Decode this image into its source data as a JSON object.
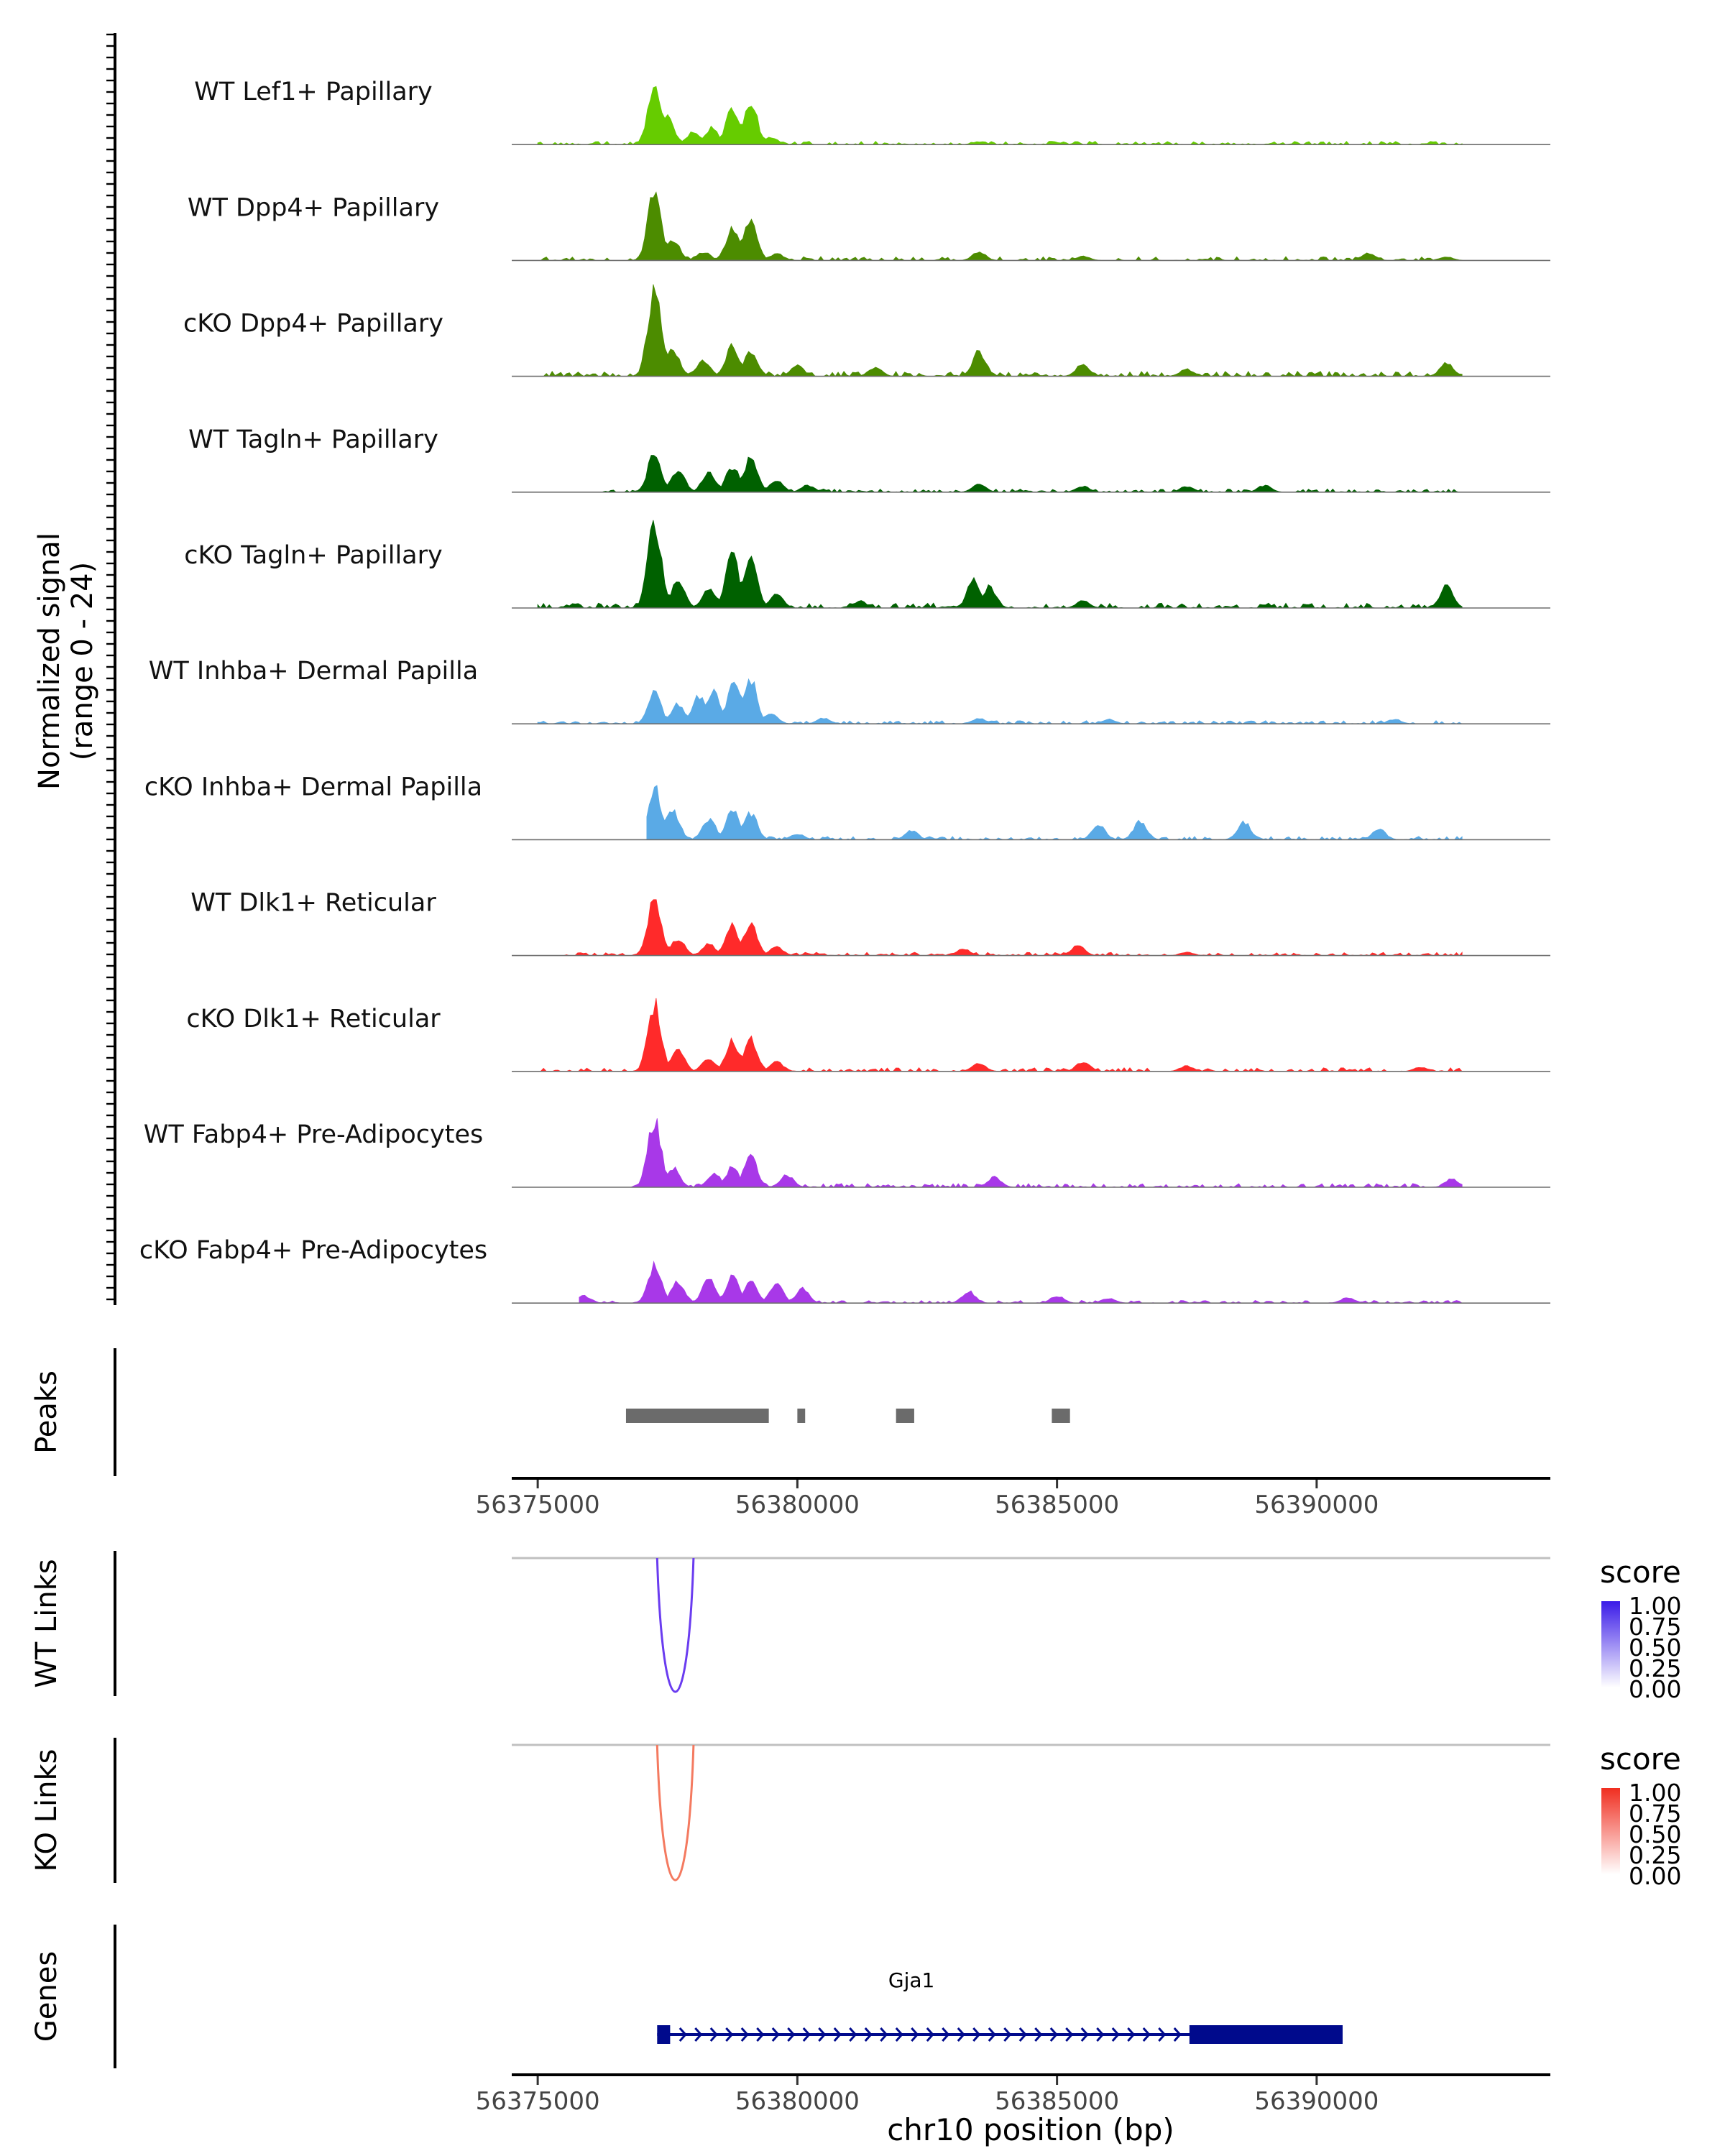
{
  "chart_data": {
    "type": "area",
    "title": "",
    "region": {
      "chrom": "chr10",
      "start": 56374500,
      "end": 56394500
    },
    "ylabel": "Normalized signal",
    "ylabel_range": "(range 0 - 24)",
    "ylim": [
      0,
      24
    ],
    "xlabel": "chr10 position (bp)",
    "x_ticks": [
      "56375000",
      "56380000",
      "56385000",
      "56390000"
    ],
    "x_tick_values": [
      56375000,
      56380000,
      56385000,
      56390000
    ],
    "tracks": [
      {
        "name": "WT Lef1+ Papillary",
        "color": "#66CC00",
        "height": 0.62,
        "data_start": 56375000,
        "data_end": 56392800,
        "peaks": [
          [
            56377250,
            1.0
          ],
          [
            56377500,
            0.45
          ],
          [
            56378000,
            0.22
          ],
          [
            56378350,
            0.28
          ],
          [
            56378750,
            0.62
          ],
          [
            56379100,
            0.72
          ],
          [
            56379500,
            0.12
          ],
          [
            56383500,
            0.05
          ],
          [
            56385000,
            0.03
          ]
        ]
      },
      {
        "name": "WT Dpp4+ Papillary",
        "color": "#4C8C00",
        "height": 0.74,
        "data_start": 56375000,
        "data_end": 56392800,
        "peaks": [
          [
            56377250,
            1.0
          ],
          [
            56377600,
            0.3
          ],
          [
            56378200,
            0.12
          ],
          [
            56378750,
            0.45
          ],
          [
            56379100,
            0.58
          ],
          [
            56379600,
            0.1
          ],
          [
            56383500,
            0.12
          ],
          [
            56385500,
            0.06
          ],
          [
            56391000,
            0.1
          ],
          [
            56392500,
            0.05
          ]
        ]
      },
      {
        "name": "cKO Dpp4+ Papillary",
        "color": "#4C8C00",
        "height": 0.92,
        "data_start": 56375000,
        "data_end": 56392800,
        "peaks": [
          [
            56377250,
            1.0
          ],
          [
            56377600,
            0.3
          ],
          [
            56378200,
            0.18
          ],
          [
            56378750,
            0.35
          ],
          [
            56379100,
            0.3
          ],
          [
            56380000,
            0.12
          ],
          [
            56381500,
            0.1
          ],
          [
            56383500,
            0.28
          ],
          [
            56385500,
            0.14
          ],
          [
            56387500,
            0.08
          ],
          [
            56392500,
            0.15
          ]
        ]
      },
      {
        "name": "WT Tagln+ Papillary",
        "color": "#006100",
        "height": 0.6,
        "data_start": 56376200,
        "data_end": 56392800,
        "peaks": [
          [
            56377250,
            0.7
          ],
          [
            56377700,
            0.4
          ],
          [
            56378300,
            0.35
          ],
          [
            56378750,
            0.45
          ],
          [
            56379100,
            0.6
          ],
          [
            56379600,
            0.2
          ],
          [
            56380200,
            0.12
          ],
          [
            56383500,
            0.15
          ],
          [
            56385500,
            0.1
          ],
          [
            56387500,
            0.1
          ],
          [
            56389000,
            0.12
          ]
        ]
      },
      {
        "name": "cKO Tagln+ Papillary",
        "color": "#006100",
        "height": 0.92,
        "data_start": 56375000,
        "data_end": 56392800,
        "peaks": [
          [
            56377250,
            1.0
          ],
          [
            56377700,
            0.3
          ],
          [
            56378300,
            0.22
          ],
          [
            56378750,
            0.6
          ],
          [
            56379100,
            0.62
          ],
          [
            56379600,
            0.15
          ],
          [
            56381200,
            0.08
          ],
          [
            56383400,
            0.32
          ],
          [
            56383700,
            0.24
          ],
          [
            56385500,
            0.08
          ],
          [
            56392500,
            0.25
          ]
        ]
      },
      {
        "name": "WT Inhba+ Dermal Papilla",
        "color": "#5AAAE6",
        "height": 0.6,
        "data_start": 56375000,
        "data_end": 56392800,
        "peaks": [
          [
            56377250,
            0.55
          ],
          [
            56377700,
            0.35
          ],
          [
            56378100,
            0.48
          ],
          [
            56378400,
            0.55
          ],
          [
            56378800,
            0.8
          ],
          [
            56379100,
            0.78
          ],
          [
            56379500,
            0.18
          ],
          [
            56380500,
            0.1
          ],
          [
            56383500,
            0.1
          ],
          [
            56386000,
            0.08
          ],
          [
            56391500,
            0.08
          ]
        ]
      },
      {
        "name": "cKO Inhba+ Dermal Papilla",
        "color": "#5AAAE6",
        "height": 0.62,
        "data_start": 56377100,
        "data_end": 56392800,
        "peaks": [
          [
            56377250,
            0.9
          ],
          [
            56377600,
            0.5
          ],
          [
            56378300,
            0.35
          ],
          [
            56378750,
            0.52
          ],
          [
            56379100,
            0.45
          ],
          [
            56380000,
            0.1
          ],
          [
            56382200,
            0.15
          ],
          [
            56385800,
            0.25
          ],
          [
            56386600,
            0.3
          ],
          [
            56388600,
            0.3
          ],
          [
            56391200,
            0.18
          ]
        ]
      },
      {
        "name": "WT Dlk1+ Reticular",
        "color": "#FF2A2A",
        "height": 0.6,
        "data_start": 56375500,
        "data_end": 56392800,
        "peaks": [
          [
            56377250,
            1.0
          ],
          [
            56377700,
            0.3
          ],
          [
            56378300,
            0.2
          ],
          [
            56378750,
            0.52
          ],
          [
            56379100,
            0.58
          ],
          [
            56379600,
            0.15
          ],
          [
            56383200,
            0.12
          ],
          [
            56385400,
            0.18
          ],
          [
            56387500,
            0.06
          ]
        ]
      },
      {
        "name": "cKO Dlk1+ Reticular",
        "color": "#FF2A2A",
        "height": 0.7,
        "data_start": 56375000,
        "data_end": 56392800,
        "peaks": [
          [
            56377250,
            1.0
          ],
          [
            56377700,
            0.3
          ],
          [
            56378300,
            0.2
          ],
          [
            56378750,
            0.45
          ],
          [
            56379100,
            0.5
          ],
          [
            56379600,
            0.15
          ],
          [
            56383500,
            0.12
          ],
          [
            56385500,
            0.15
          ],
          [
            56387500,
            0.08
          ],
          [
            56392000,
            0.06
          ]
        ]
      },
      {
        "name": "WT Fabp4+ Pre-Adipocytes",
        "color": "#A838E8",
        "height": 0.7,
        "data_start": 56376800,
        "data_end": 56392800,
        "peaks": [
          [
            56377250,
            1.0
          ],
          [
            56377600,
            0.3
          ],
          [
            56378400,
            0.2
          ],
          [
            56378750,
            0.3
          ],
          [
            56379100,
            0.45
          ],
          [
            56379800,
            0.18
          ],
          [
            56383800,
            0.15
          ],
          [
            56392600,
            0.12
          ]
        ]
      },
      {
        "name": "cKO Fabp4+ Pre-Adipocytes",
        "color": "#A838E8",
        "height": 0.5,
        "data_start": 56375800,
        "data_end": 56392800,
        "peaks": [
          [
            56375900,
            0.15
          ],
          [
            56377250,
            0.8
          ],
          [
            56377700,
            0.45
          ],
          [
            56378300,
            0.5
          ],
          [
            56378750,
            0.55
          ],
          [
            56379100,
            0.48
          ],
          [
            56379600,
            0.4
          ],
          [
            56380100,
            0.3
          ],
          [
            56383300,
            0.25
          ],
          [
            56385000,
            0.15
          ],
          [
            56386000,
            0.1
          ],
          [
            56390600,
            0.12
          ]
        ]
      }
    ],
    "peaks_label": "Peaks",
    "peak_regions": [
      [
        56376700,
        56379450
      ],
      [
        56380000,
        56380150
      ],
      [
        56381900,
        56382250
      ],
      [
        56384900,
        56385250
      ]
    ],
    "links": [
      {
        "label": "WT Links",
        "legend_title": "score",
        "color": "#6A3CF0",
        "legend_color": "#3A1BE8",
        "start": 56377300,
        "end": 56378000
      },
      {
        "label": "KO Links",
        "legend_title": "score",
        "color": "#F47A60",
        "legend_color": "#F02E20",
        "start": 56377300,
        "end": 56378000
      }
    ],
    "legend_ticks": [
      "1.00",
      "0.75",
      "0.50",
      "0.25",
      "0.00"
    ],
    "genes_label": "Genes",
    "gene": {
      "name": "Gja1",
      "strand": "+",
      "color": "#000A8C",
      "start": 56377300,
      "end": 56390500,
      "exons": [
        [
          56377300,
          56377550
        ],
        [
          56387550,
          56390500
        ]
      ]
    }
  }
}
